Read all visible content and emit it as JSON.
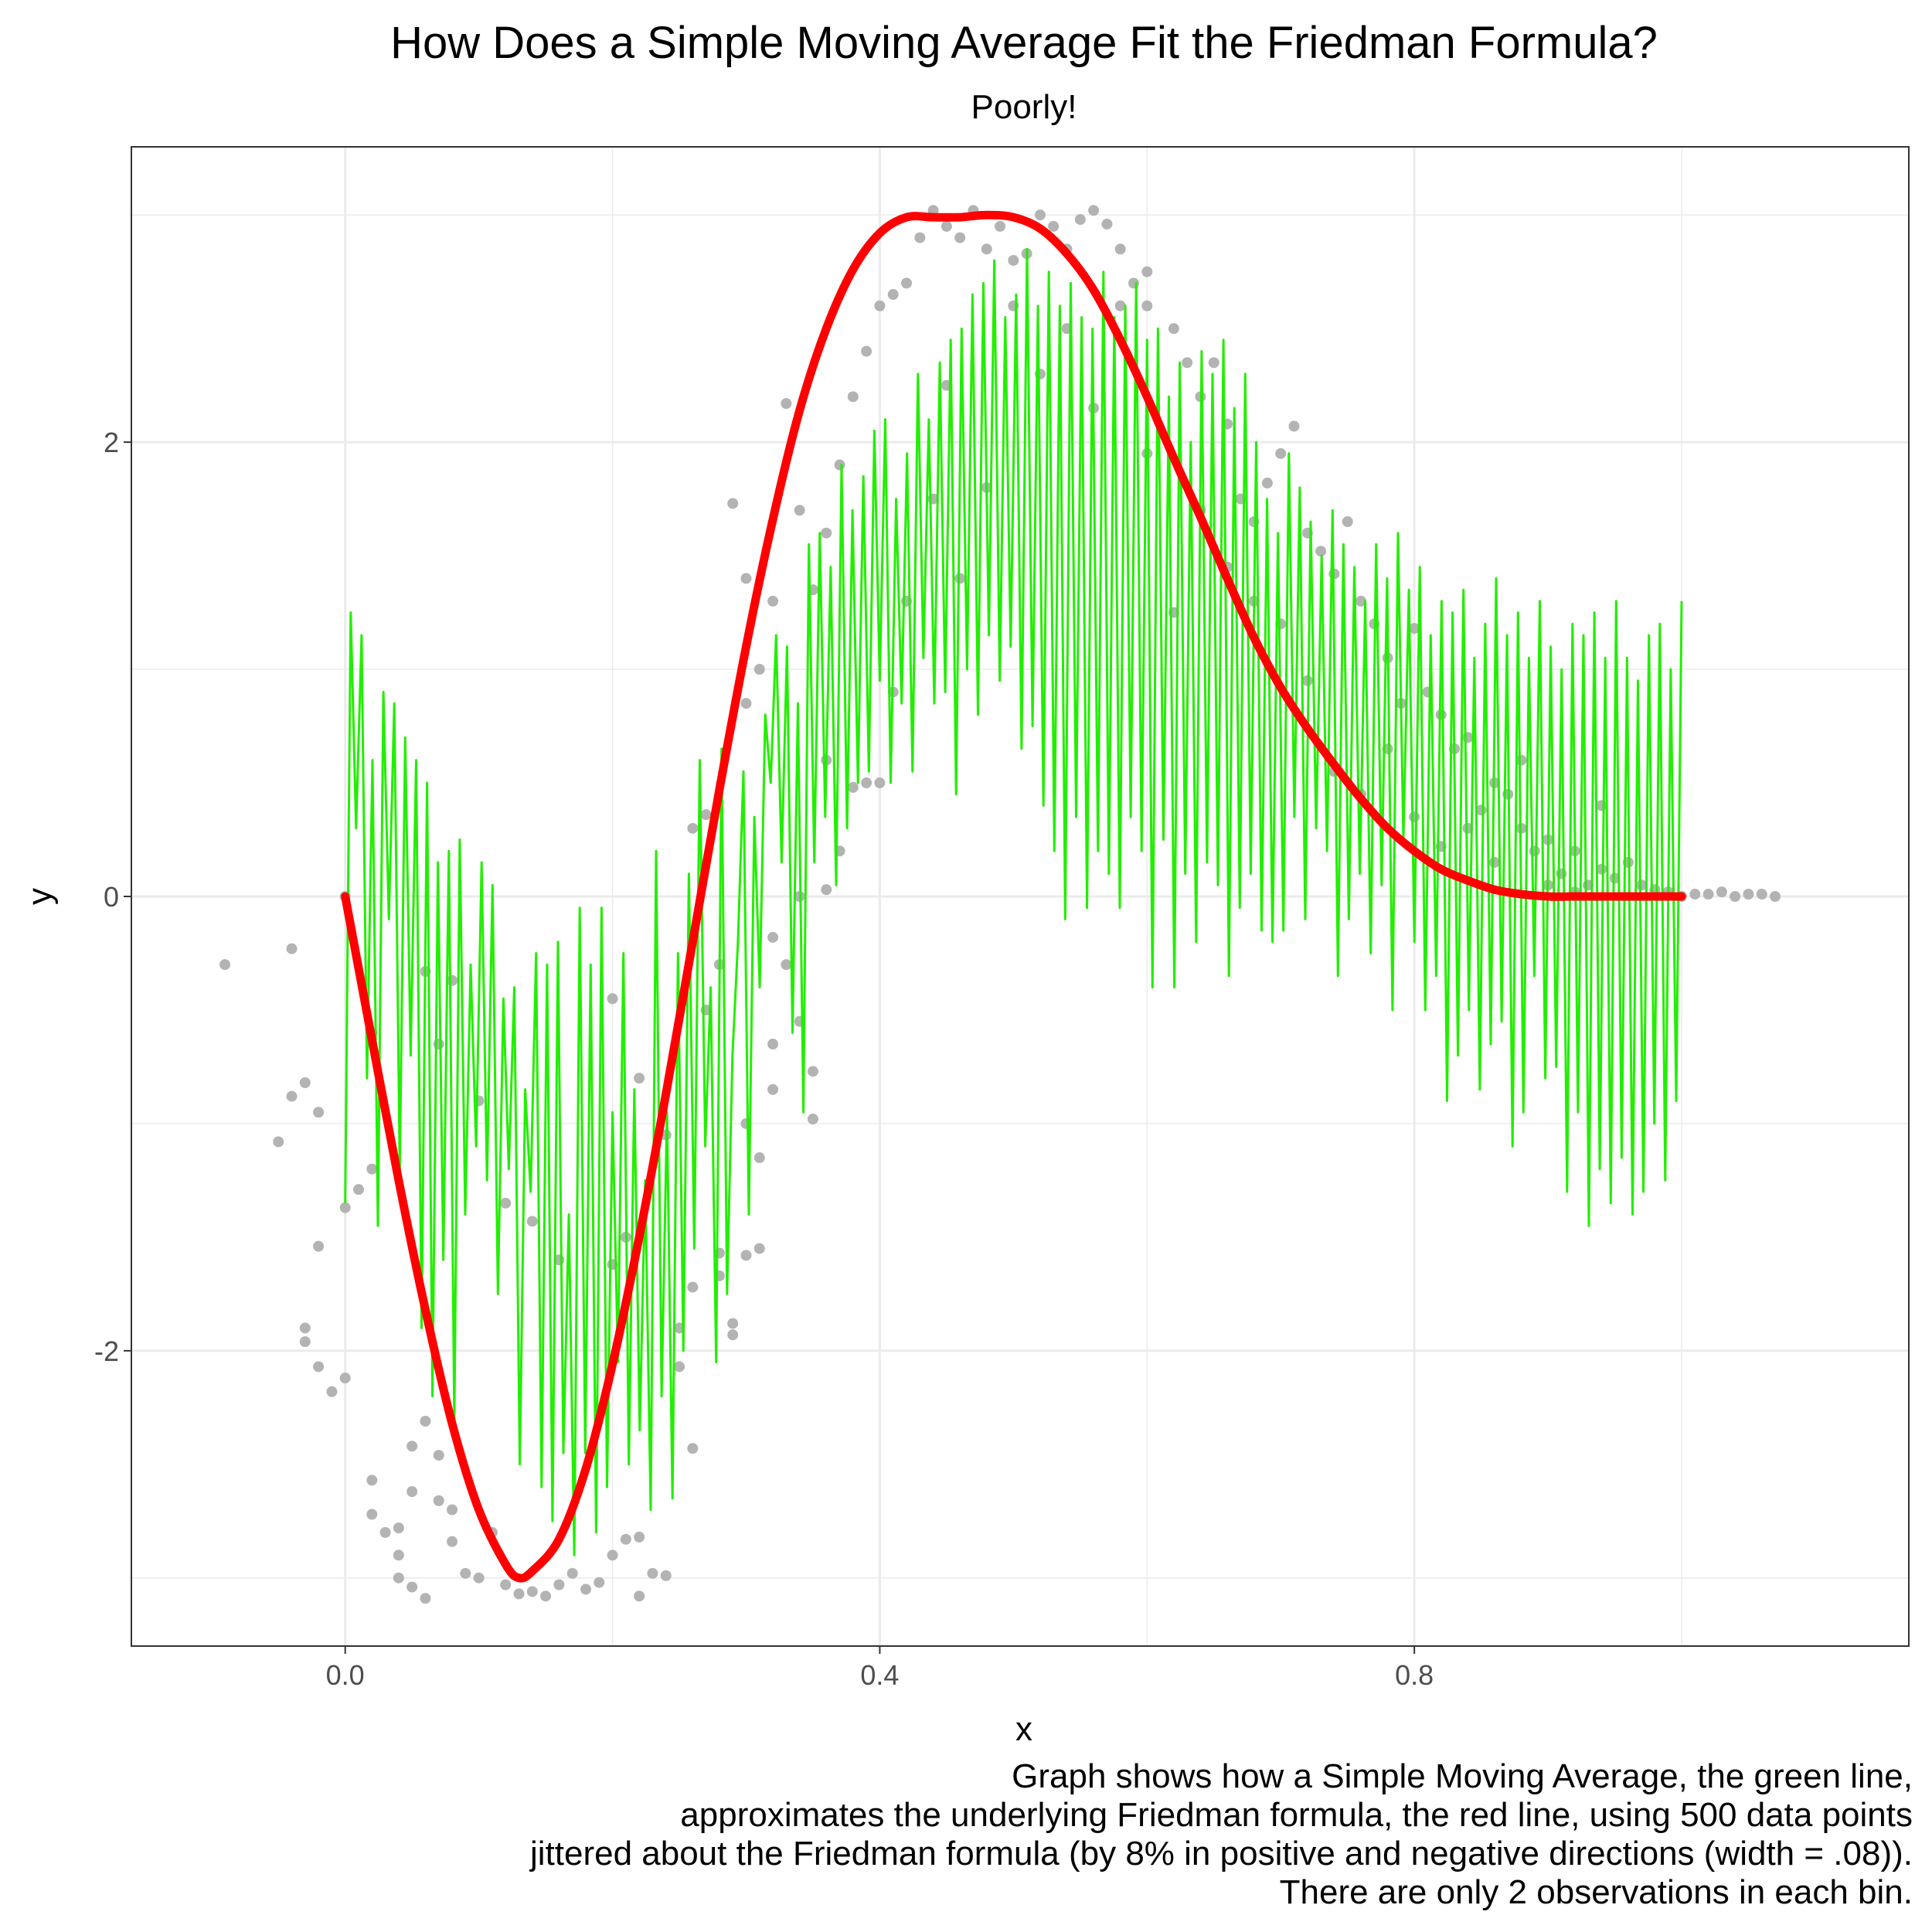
{
  "chart_data": {
    "type": "line",
    "title": "How Does a Simple Moving Average Fit the Friedman Formula?",
    "subtitle": "Poorly!",
    "xlabel": "x",
    "ylabel": "y",
    "xlim": [
      -0.16,
      1.17
    ],
    "ylim": [
      -3.3,
      3.3
    ],
    "x_ticks": [
      0.0,
      0.4,
      0.8
    ],
    "x_tick_labels": [
      "0.0",
      "0.4",
      "0.8"
    ],
    "y_ticks": [
      -2,
      0,
      2
    ],
    "y_tick_labels": [
      "-2",
      "0",
      "2"
    ],
    "grid": true,
    "caption": [
      "Graph shows how a Simple Moving Average, the green line,",
      "approximates the underlying Friedman formula, the red line, using 500 data points",
      "jittered about the Friedman formula (by 8% in positive and negative directions (width = .08)).",
      "There are only 2 observations in each bin."
    ],
    "colors": {
      "formula": "#ff0000",
      "moving_average": "#22ee00",
      "points": "#b3b3b3",
      "grid": "#ebebeb",
      "border": "#333333"
    },
    "series": [
      {
        "name": "the red line",
        "kind": "line",
        "function": "3*sin(2*pi*x)^3 ... sampled",
        "x": [
          0.0,
          0.02,
          0.04,
          0.06,
          0.08,
          0.1,
          0.12,
          0.13,
          0.14,
          0.16,
          0.18,
          0.2,
          0.22,
          0.24,
          0.26,
          0.28,
          0.3,
          0.32,
          0.34,
          0.36,
          0.38,
          0.4,
          0.42,
          0.44,
          0.46,
          0.48,
          0.5,
          0.52,
          0.54,
          0.56,
          0.58,
          0.6,
          0.62,
          0.64,
          0.66,
          0.68,
          0.7,
          0.72,
          0.74,
          0.76,
          0.78,
          0.8,
          0.82,
          0.84,
          0.86,
          0.88,
          0.9,
          0.92,
          0.94,
          0.96,
          0.98,
          1.0
        ],
        "values": [
          0.0,
          -0.63,
          -1.25,
          -1.82,
          -2.32,
          -2.7,
          -2.94,
          -3.0,
          -2.97,
          -2.83,
          -2.52,
          -2.06,
          -1.5,
          -0.87,
          -0.2,
          0.47,
          1.1,
          1.66,
          2.14,
          2.5,
          2.76,
          2.92,
          2.99,
          2.99,
          2.99,
          3.0,
          2.99,
          2.94,
          2.83,
          2.67,
          2.45,
          2.2,
          1.93,
          1.67,
          1.4,
          1.14,
          0.92,
          0.74,
          0.58,
          0.43,
          0.3,
          0.2,
          0.12,
          0.07,
          0.03,
          0.01,
          0.0,
          0.0,
          0.0,
          0.0,
          0.0,
          0.0
        ]
      },
      {
        "name": "the green line",
        "kind": "moving_average",
        "x_start": 0.0,
        "x_end": 1.0,
        "values": [
          -1.35,
          1.25,
          0.3,
          1.15,
          -0.8,
          0.6,
          -1.45,
          0.9,
          -0.1,
          0.85,
          -1.2,
          0.7,
          -0.7,
          0.6,
          -1.9,
          0.5,
          -2.2,
          0.15,
          -1.6,
          0.2,
          -2.3,
          0.25,
          -1.4,
          -0.3,
          -1.1,
          0.15,
          -1.25,
          0.05,
          -1.75,
          -0.45,
          -1.2,
          -0.4,
          -2.5,
          -0.85,
          -1.3,
          -0.25,
          -2.6,
          -0.3,
          -2.75,
          -0.2,
          -2.45,
          -1.4,
          -2.9,
          -0.05,
          -2.45,
          -0.3,
          -2.8,
          -0.05,
          -2.6,
          -0.95,
          -2.05,
          -0.25,
          -2.5,
          -0.85,
          -2.35,
          -1.25,
          -2.7,
          0.2,
          -2.2,
          -0.95,
          -2.65,
          -0.25,
          -2.0,
          0.1,
          -1.55,
          0.6,
          -1.1,
          -0.4,
          -2.05,
          0.65,
          -1.75,
          -0.7,
          -0.2,
          0.55,
          -1.4,
          0.35,
          -0.4,
          0.8,
          0.5,
          1.15,
          0.15,
          1.1,
          -0.6,
          0.85,
          -0.95,
          1.55,
          0.15,
          1.6,
          0.35,
          1.45,
          0.05,
          1.9,
          0.3,
          1.7,
          0.5,
          1.85,
          0.55,
          2.05,
          0.95,
          2.1,
          0.5,
          1.75,
          0.85,
          1.95,
          0.55,
          2.3,
          1.05,
          2.1,
          0.85,
          2.35,
          0.9,
          2.45,
          0.45,
          2.5,
          1.0,
          2.65,
          0.8,
          2.7,
          1.15,
          2.8,
          0.95,
          2.55,
          1.1,
          2.65,
          0.65,
          2.85,
          0.75,
          2.6,
          0.4,
          2.75,
          0.2,
          2.6,
          -0.1,
          2.7,
          0.35,
          2.55,
          -0.05,
          2.5,
          0.2,
          2.75,
          0.1,
          2.55,
          -0.05,
          2.6,
          0.35,
          2.7,
          0.2,
          2.45,
          -0.4,
          2.5,
          0.25,
          2.2,
          -0.4,
          2.35,
          0.1,
          2.0,
          -0.2,
          2.4,
          0.15,
          2.3,
          0.05,
          2.45,
          -0.35,
          2.15,
          -0.05,
          2.3,
          0.1,
          2.0,
          -0.15,
          1.75,
          -0.2,
          1.6,
          -0.15,
          1.95,
          0.35,
          1.8,
          -0.1,
          1.65,
          0.3,
          1.5,
          0.2,
          1.7,
          -0.35,
          1.55,
          -0.1,
          1.45,
          0.1,
          1.3,
          -0.25,
          1.55,
          0.05,
          1.4,
          -0.5,
          1.6,
          0.25,
          1.35,
          -0.2,
          1.45,
          -0.5,
          1.15,
          -0.35,
          1.3,
          -0.9,
          1.25,
          -0.7,
          1.35,
          -0.5,
          1.05,
          -0.85,
          1.2,
          -0.65,
          1.4,
          -0.55,
          1.15,
          -1.1,
          1.25,
          -0.95,
          1.05,
          -0.35,
          1.3,
          -0.8,
          1.1,
          -0.75,
          1.0,
          -1.3,
          1.2,
          -0.95,
          1.15,
          -1.45,
          1.25,
          -1.2,
          1.05,
          -1.35,
          1.3,
          -1.15,
          1.05,
          -1.4,
          0.95,
          -1.3,
          1.15,
          -1.0,
          1.2,
          -1.25,
          1.0,
          -0.9,
          1.3
        ]
      },
      {
        "name": "data points",
        "kind": "scatter",
        "points": [
          [
            -0.09,
            -0.3
          ],
          [
            -0.05,
            -1.08
          ],
          [
            -0.04,
            -0.23
          ],
          [
            -0.04,
            -0.88
          ],
          [
            -0.03,
            -0.82
          ],
          [
            -0.02,
            -0.95
          ],
          [
            -0.02,
            -1.54
          ],
          [
            -0.03,
            -1.9
          ],
          [
            -0.03,
            -1.96
          ],
          [
            -0.02,
            -2.07
          ],
          [
            -0.01,
            -2.18
          ],
          [
            0.0,
            -2.12
          ],
          [
            0.0,
            -1.37
          ],
          [
            0.01,
            -1.29
          ],
          [
            0.02,
            -1.2
          ],
          [
            0.02,
            -0.6
          ],
          [
            0.0,
            0.0
          ],
          [
            0.02,
            -2.57
          ],
          [
            0.02,
            -2.72
          ],
          [
            0.03,
            -2.8
          ],
          [
            0.04,
            -2.78
          ],
          [
            0.04,
            -2.9
          ],
          [
            0.04,
            -3.0
          ],
          [
            0.05,
            -3.04
          ],
          [
            0.06,
            -3.09
          ],
          [
            0.05,
            -2.42
          ],
          [
            0.06,
            -2.31
          ],
          [
            0.05,
            -2.62
          ],
          [
            0.07,
            -2.46
          ],
          [
            0.07,
            -2.66
          ],
          [
            0.08,
            -2.7
          ],
          [
            0.08,
            -2.84
          ],
          [
            0.09,
            -2.98
          ],
          [
            0.1,
            -3.0
          ],
          [
            0.11,
            -2.8
          ],
          [
            0.12,
            -3.03
          ],
          [
            0.13,
            -3.07
          ],
          [
            0.14,
            -3.06
          ],
          [
            0.15,
            -3.08
          ],
          [
            0.16,
            -3.03
          ],
          [
            0.17,
            -2.98
          ],
          [
            0.18,
            -3.05
          ],
          [
            0.19,
            -3.02
          ],
          [
            0.2,
            -2.9
          ],
          [
            0.21,
            -2.83
          ],
          [
            0.22,
            -2.82
          ],
          [
            0.22,
            -3.08
          ],
          [
            0.23,
            -2.98
          ],
          [
            0.24,
            -2.99
          ],
          [
            0.06,
            -0.33
          ],
          [
            0.07,
            -0.65
          ],
          [
            0.08,
            -0.37
          ],
          [
            0.1,
            -0.9
          ],
          [
            0.12,
            -1.35
          ],
          [
            0.14,
            -1.43
          ],
          [
            0.16,
            -1.6
          ],
          [
            0.2,
            -1.62
          ],
          [
            0.21,
            -1.5
          ],
          [
            0.2,
            -0.45
          ],
          [
            0.22,
            -0.8
          ],
          [
            0.24,
            -1.05
          ],
          [
            0.25,
            -1.9
          ],
          [
            0.26,
            -1.72
          ],
          [
            0.25,
            -2.07
          ],
          [
            0.26,
            -2.43
          ],
          [
            0.26,
            0.3
          ],
          [
            0.27,
            0.36
          ],
          [
            0.27,
            -0.5
          ],
          [
            0.28,
            -0.3
          ],
          [
            0.28,
            -1.57
          ],
          [
            0.28,
            -1.67
          ],
          [
            0.29,
            -1.88
          ],
          [
            0.29,
            -1.93
          ],
          [
            0.3,
            -1.58
          ],
          [
            0.31,
            -1.55
          ],
          [
            0.3,
            -1.0
          ],
          [
            0.31,
            -1.15
          ],
          [
            0.32,
            -0.18
          ],
          [
            0.32,
            -0.65
          ],
          [
            0.32,
            -0.85
          ],
          [
            0.33,
            -0.3
          ],
          [
            0.34,
            0.0
          ],
          [
            0.34,
            -0.55
          ],
          [
            0.35,
            -0.98
          ],
          [
            0.35,
            -0.77
          ],
          [
            0.36,
            0.03
          ],
          [
            0.37,
            0.2
          ],
          [
            0.36,
            0.6
          ],
          [
            0.38,
            0.48
          ],
          [
            0.39,
            0.5
          ],
          [
            0.29,
            1.73
          ],
          [
            0.3,
            1.4
          ],
          [
            0.3,
            0.85
          ],
          [
            0.31,
            1.0
          ],
          [
            0.32,
            1.3
          ],
          [
            0.33,
            2.17
          ],
          [
            0.34,
            1.7
          ],
          [
            0.35,
            1.35
          ],
          [
            0.36,
            1.6
          ],
          [
            0.37,
            1.9
          ],
          [
            0.38,
            2.2
          ],
          [
            0.39,
            2.4
          ],
          [
            0.4,
            2.6
          ],
          [
            0.41,
            2.65
          ],
          [
            0.42,
            2.7
          ],
          [
            0.43,
            2.9
          ],
          [
            0.44,
            3.02
          ],
          [
            0.45,
            2.95
          ],
          [
            0.46,
            2.9
          ],
          [
            0.47,
            3.02
          ],
          [
            0.48,
            2.85
          ],
          [
            0.49,
            2.95
          ],
          [
            0.5,
            2.8
          ],
          [
            0.51,
            2.83
          ],
          [
            0.52,
            3.0
          ],
          [
            0.53,
            2.95
          ],
          [
            0.54,
            2.85
          ],
          [
            0.55,
            2.98
          ],
          [
            0.56,
            3.02
          ],
          [
            0.57,
            2.96
          ],
          [
            0.58,
            2.85
          ],
          [
            0.59,
            2.7
          ],
          [
            0.6,
            2.75
          ],
          [
            0.6,
            2.6
          ],
          [
            0.62,
            2.5
          ],
          [
            0.63,
            2.35
          ],
          [
            0.64,
            2.2
          ],
          [
            0.65,
            2.35
          ],
          [
            0.66,
            2.08
          ],
          [
            0.67,
            1.75
          ],
          [
            0.68,
            1.65
          ],
          [
            0.69,
            1.82
          ],
          [
            0.7,
            1.95
          ],
          [
            0.71,
            2.07
          ],
          [
            0.72,
            1.6
          ],
          [
            0.73,
            1.52
          ],
          [
            0.74,
            1.42
          ],
          [
            0.75,
            1.65
          ],
          [
            0.76,
            1.3
          ],
          [
            0.77,
            1.2
          ],
          [
            0.78,
            1.05
          ],
          [
            0.79,
            0.85
          ],
          [
            0.8,
            1.18
          ],
          [
            0.81,
            0.9
          ],
          [
            0.82,
            0.8
          ],
          [
            0.83,
            0.65
          ],
          [
            0.84,
            0.7
          ],
          [
            0.85,
            0.38
          ],
          [
            0.86,
            0.5
          ],
          [
            0.87,
            0.45
          ],
          [
            0.88,
            0.3
          ],
          [
            0.89,
            0.2
          ],
          [
            0.9,
            0.25
          ],
          [
            0.91,
            0.1
          ],
          [
            0.92,
            0.2
          ],
          [
            0.93,
            0.05
          ],
          [
            0.94,
            0.12
          ],
          [
            0.95,
            0.08
          ],
          [
            0.96,
            0.15
          ],
          [
            0.97,
            0.05
          ],
          [
            0.98,
            0.03
          ],
          [
            0.99,
            0.02
          ],
          [
            1.0,
            0.0
          ],
          [
            1.01,
            0.01
          ],
          [
            1.02,
            0.01
          ],
          [
            1.03,
            0.02
          ],
          [
            1.04,
            0.0
          ],
          [
            1.05,
            0.01
          ],
          [
            1.06,
            0.01
          ],
          [
            1.07,
            0.0
          ],
          [
            0.4,
            0.5
          ],
          [
            0.41,
            0.9
          ],
          [
            0.42,
            1.3
          ],
          [
            0.44,
            1.75
          ],
          [
            0.45,
            2.25
          ],
          [
            0.46,
            1.4
          ],
          [
            0.48,
            1.8
          ],
          [
            0.5,
            2.6
          ],
          [
            0.52,
            2.3
          ],
          [
            0.54,
            2.5
          ],
          [
            0.56,
            2.15
          ],
          [
            0.58,
            2.6
          ],
          [
            0.6,
            1.95
          ],
          [
            0.62,
            1.25
          ],
          [
            0.64,
            1.7
          ],
          [
            0.66,
            1.45
          ],
          [
            0.68,
            1.3
          ],
          [
            0.7,
            1.2
          ],
          [
            0.72,
            0.95
          ],
          [
            0.74,
            0.55
          ],
          [
            0.76,
            0.45
          ],
          [
            0.78,
            0.65
          ],
          [
            0.8,
            0.35
          ],
          [
            0.82,
            0.22
          ],
          [
            0.84,
            0.3
          ],
          [
            0.86,
            0.15
          ],
          [
            0.88,
            0.6
          ],
          [
            0.9,
            0.05
          ],
          [
            0.92,
            0.02
          ],
          [
            0.94,
            0.4
          ]
        ]
      }
    ]
  }
}
